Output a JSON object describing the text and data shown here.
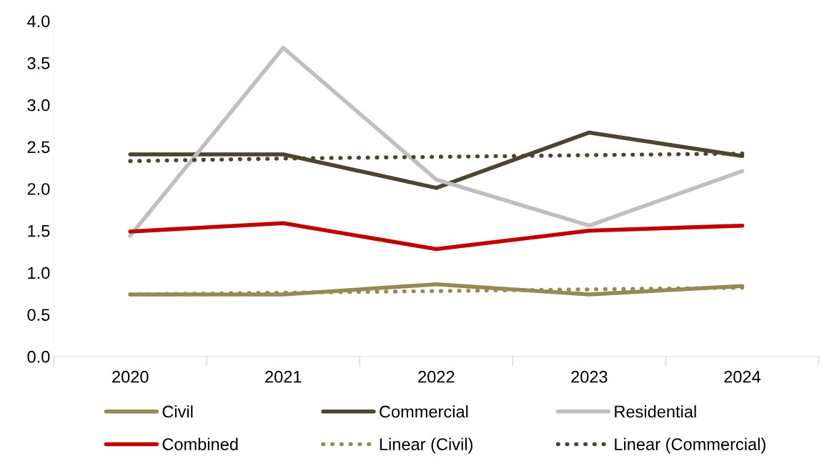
{
  "chart_data": {
    "type": "line",
    "categories": [
      "2020",
      "2021",
      "2022",
      "2023",
      "2024"
    ],
    "series": [
      {
        "name": "Civil",
        "color": "#948a54",
        "values": [
          0.74,
          0.74,
          0.86,
          0.74,
          0.84
        ]
      },
      {
        "name": "Commercial",
        "color": "#4a4430",
        "values": [
          2.41,
          2.41,
          2.01,
          2.67,
          2.39
        ]
      },
      {
        "name": "Residential",
        "color": "#bfbfbf",
        "values": [
          1.44,
          3.68,
          2.11,
          1.56,
          2.21
        ]
      },
      {
        "name": "Combined",
        "color": "#c00000",
        "values": [
          1.49,
          1.59,
          1.28,
          1.5,
          1.56
        ]
      },
      {
        "name": "Linear (Civil)",
        "color": "#948a54",
        "line_style": "dotted",
        "values": [
          0.74,
          0.76,
          0.78,
          0.8,
          0.82
        ]
      },
      {
        "name": "Linear (Commercial)",
        "color": "#4a4430",
        "line_style": "dotted",
        "values": [
          2.33,
          2.36,
          2.38,
          2.4,
          2.42
        ]
      }
    ],
    "ylim": [
      0,
      4
    ],
    "yticks": [
      {
        "value": 0,
        "label": "0.0"
      },
      {
        "value": 0.5,
        "label": "0.5"
      },
      {
        "value": 1,
        "label": "1.0"
      },
      {
        "value": 1.5,
        "label": "1.5"
      },
      {
        "value": 2,
        "label": "2.0"
      },
      {
        "value": 2.5,
        "label": "2.5"
      },
      {
        "value": 3,
        "label": "3.0"
      },
      {
        "value": 3.5,
        "label": "3.5"
      },
      {
        "value": 4,
        "label": "4.0"
      }
    ],
    "grid": false,
    "legend": "bottom",
    "marker": "none",
    "line_style": "solid"
  }
}
